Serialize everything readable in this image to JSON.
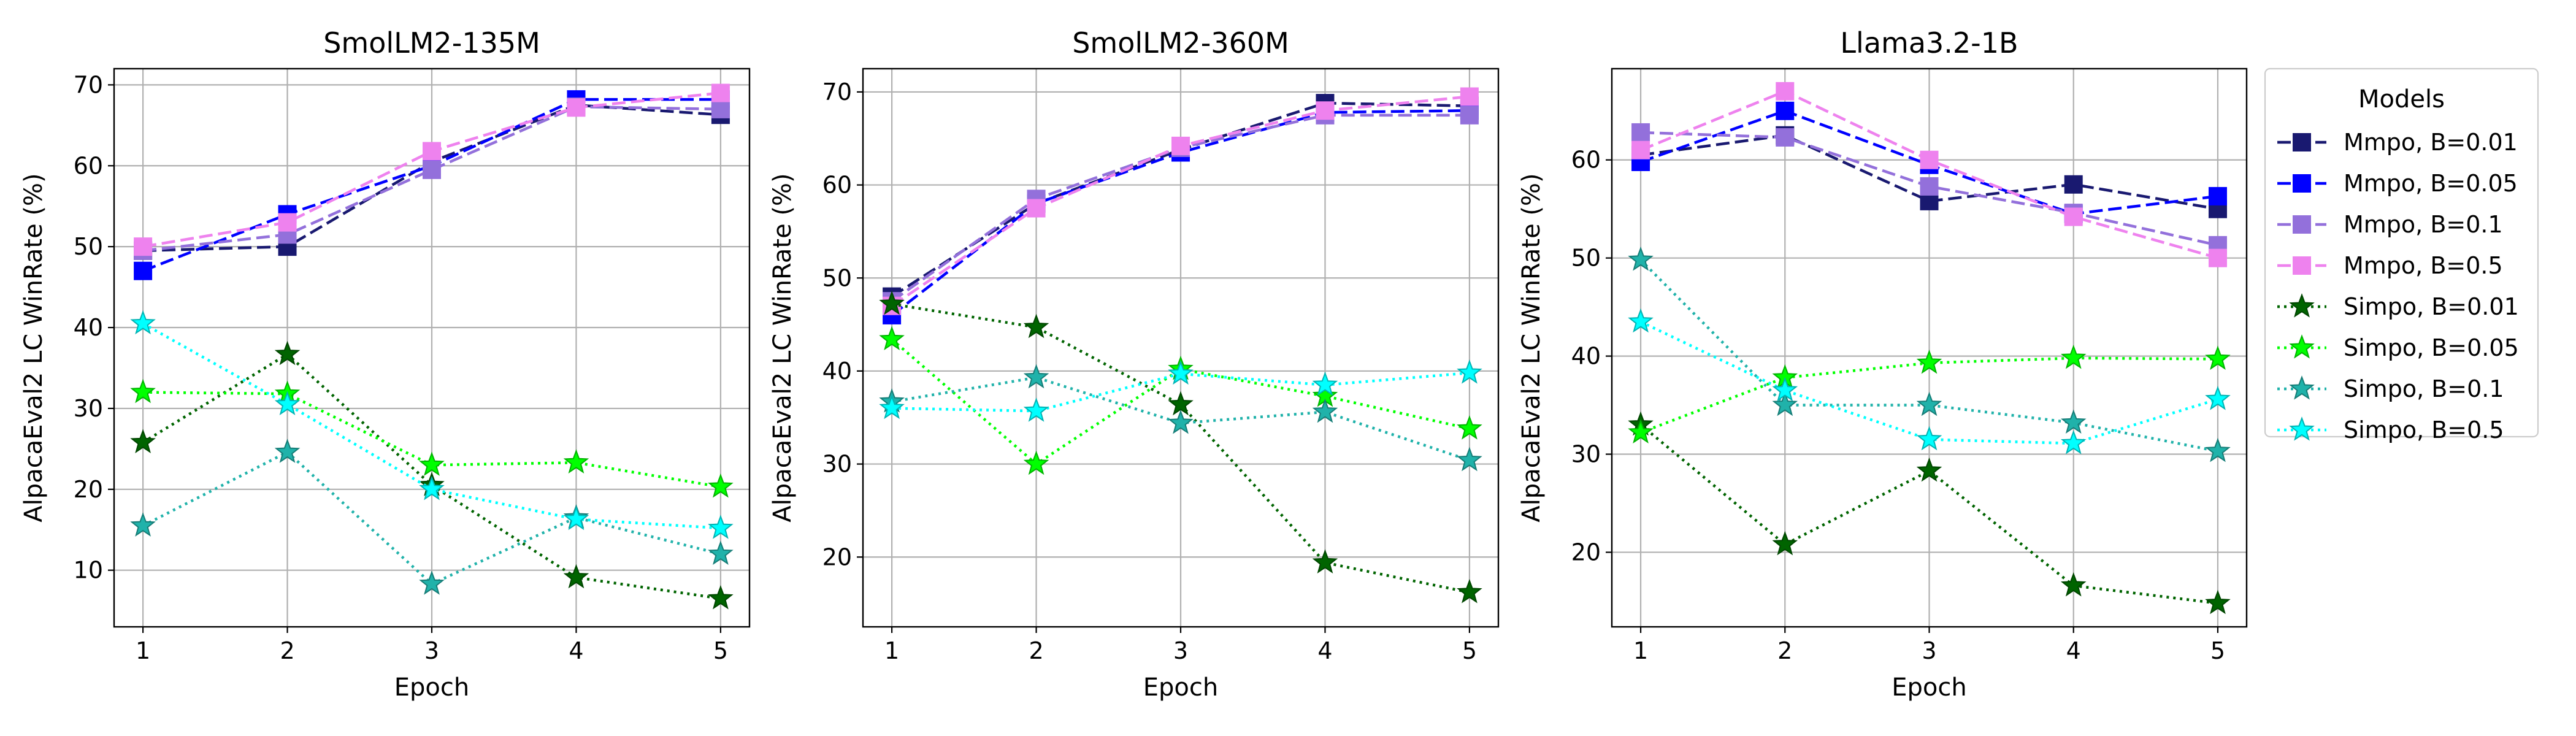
{
  "chart_data": [
    {
      "type": "line",
      "title": "SmolLM2-135M",
      "xlabel": "Epoch",
      "ylabel": "AlpacaEval2 LC WinRate (%)",
      "x": [
        1,
        2,
        3,
        4,
        5
      ],
      "xlim": [
        0.8,
        5.2
      ],
      "ylim": [
        3,
        72
      ],
      "yticks": [
        10,
        20,
        30,
        40,
        50,
        60,
        70
      ],
      "grid": true,
      "series": [
        {
          "name": "Mmpo, B=0.01",
          "values": [
            49.5,
            50.0,
            60.5,
            67.5,
            66.3
          ]
        },
        {
          "name": "Mmpo, B=0.05",
          "values": [
            47.0,
            54.0,
            60.0,
            68.2,
            68.2
          ]
        },
        {
          "name": "Mmpo, B=0.1",
          "values": [
            49.5,
            51.5,
            59.5,
            67.3,
            67.0
          ]
        },
        {
          "name": "Mmpo, B=0.5",
          "values": [
            50.0,
            53.0,
            61.8,
            67.2,
            69.0
          ]
        },
        {
          "name": "Simpo, B=0.01",
          "values": [
            25.8,
            36.7,
            20.5,
            9.1,
            6.5
          ]
        },
        {
          "name": "Simpo, B=0.05",
          "values": [
            32.0,
            31.8,
            23.0,
            23.3,
            20.3
          ]
        },
        {
          "name": "Simpo, B=0.1",
          "values": [
            15.5,
            24.6,
            8.3,
            16.5,
            12.0
          ]
        },
        {
          "name": "Simpo, B=0.5",
          "values": [
            40.5,
            30.5,
            20.0,
            16.3,
            15.2
          ]
        }
      ]
    },
    {
      "type": "line",
      "title": "SmolLM2-360M",
      "xlabel": "Epoch",
      "ylabel": "AlpacaEval2 LC WinRate (%)",
      "x": [
        1,
        2,
        3,
        4,
        5
      ],
      "xlim": [
        0.8,
        5.2
      ],
      "ylim": [
        12.5,
        72.5
      ],
      "yticks": [
        20,
        30,
        40,
        50,
        60,
        70
      ],
      "grid": true,
      "series": [
        {
          "name": "Mmpo, B=0.01",
          "values": [
            48.0,
            58.0,
            63.8,
            68.8,
            68.5
          ]
        },
        {
          "name": "Mmpo, B=0.05",
          "values": [
            46.0,
            58.0,
            63.5,
            67.8,
            68.0
          ]
        },
        {
          "name": "Mmpo, B=0.1",
          "values": [
            47.5,
            58.5,
            64.0,
            67.5,
            67.5
          ]
        },
        {
          "name": "Mmpo, B=0.5",
          "values": [
            47.0,
            57.5,
            64.2,
            68.0,
            69.5
          ]
        },
        {
          "name": "Simpo, B=0.01",
          "values": [
            47.2,
            44.7,
            36.4,
            19.4,
            16.2
          ]
        },
        {
          "name": "Simpo, B=0.05",
          "values": [
            43.4,
            30.0,
            40.2,
            37.3,
            33.8
          ]
        },
        {
          "name": "Simpo, B=0.1",
          "values": [
            36.7,
            39.3,
            34.4,
            35.6,
            30.4
          ]
        },
        {
          "name": "Simpo, B=0.5",
          "values": [
            36.0,
            35.7,
            39.7,
            38.5,
            39.8
          ]
        }
      ]
    },
    {
      "type": "line",
      "title": "Llama3.2-1B",
      "xlabel": "Epoch",
      "ylabel": "AlpacaEval2 LC WinRate (%)",
      "x": [
        1,
        2,
        3,
        4,
        5
      ],
      "xlim": [
        0.8,
        5.2
      ],
      "ylim": [
        12.4,
        69.3
      ],
      "yticks": [
        20,
        30,
        40,
        50,
        60
      ],
      "grid": true,
      "series": [
        {
          "name": "Mmpo, B=0.01",
          "values": [
            60.5,
            62.5,
            55.8,
            57.5,
            55.0
          ]
        },
        {
          "name": "Mmpo, B=0.05",
          "values": [
            59.8,
            65.0,
            59.5,
            54.5,
            56.3
          ]
        },
        {
          "name": "Mmpo, B=0.1",
          "values": [
            62.8,
            62.3,
            57.3,
            54.6,
            51.3
          ]
        },
        {
          "name": "Mmpo, B=0.5",
          "values": [
            61.0,
            67.0,
            60.0,
            54.2,
            50.0
          ]
        },
        {
          "name": "Simpo, B=0.01",
          "values": [
            33.0,
            20.8,
            28.3,
            16.6,
            14.8
          ]
        },
        {
          "name": "Simpo, B=0.05",
          "values": [
            32.2,
            37.8,
            39.3,
            39.8,
            39.7
          ]
        },
        {
          "name": "Simpo, B=0.1",
          "values": [
            49.8,
            35.0,
            35.0,
            33.2,
            30.3
          ]
        },
        {
          "name": "Simpo, B=0.5",
          "values": [
            43.5,
            36.5,
            31.5,
            31.1,
            35.6
          ]
        }
      ]
    }
  ],
  "legend": {
    "title": "Models",
    "placement": "right",
    "entries": [
      "Mmpo, B=0.01",
      "Mmpo, B=0.05",
      "Mmpo, B=0.1",
      "Mmpo, B=0.5",
      "Simpo, B=0.01",
      "Simpo, B=0.05",
      "Simpo, B=0.1",
      "Simpo, B=0.5"
    ]
  },
  "series_styles": [
    {
      "color": "#191970",
      "dash": "dashed",
      "marker": "square"
    },
    {
      "color": "#0000ff",
      "dash": "dashed",
      "marker": "square"
    },
    {
      "color": "#9370db",
      "dash": "dashed",
      "marker": "square"
    },
    {
      "color": "#ee82ee",
      "dash": "dashed",
      "marker": "square"
    },
    {
      "color": "#006400",
      "dash": "dotted",
      "marker": "star"
    },
    {
      "color": "#00ff00",
      "dash": "dotted",
      "marker": "star"
    },
    {
      "color": "#20b2aa",
      "dash": "dotted",
      "marker": "star"
    },
    {
      "color": "#00ffff",
      "dash": "dotted",
      "marker": "star"
    }
  ]
}
